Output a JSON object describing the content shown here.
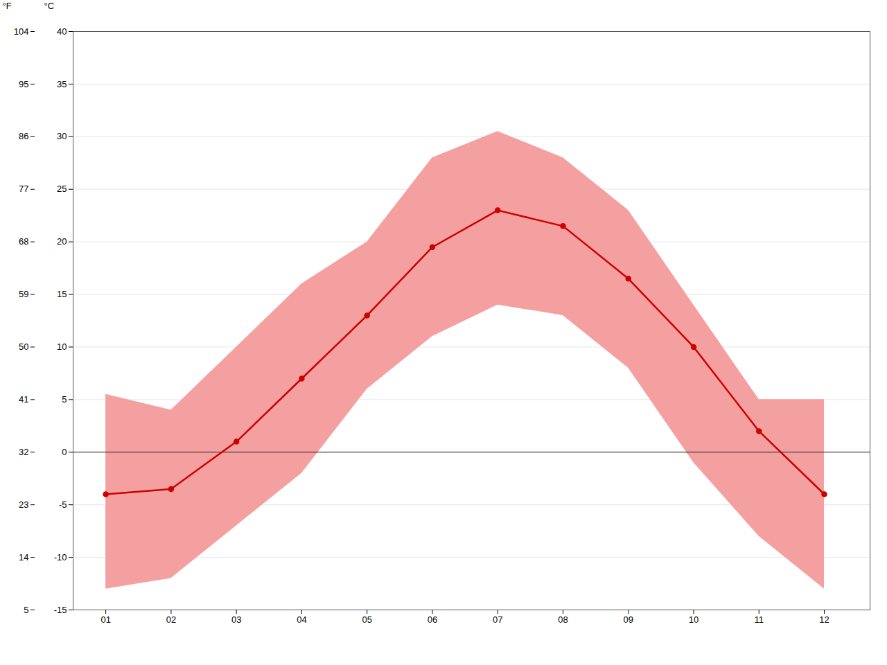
{
  "chart_data": {
    "type": "line",
    "x": [
      1,
      2,
      3,
      4,
      5,
      6,
      7,
      8,
      9,
      10,
      11,
      12
    ],
    "series": [
      {
        "type": "area",
        "color": "#f5a0a0",
        "lower": [
          -13.0,
          -12.0,
          -7.0,
          -2.0,
          6.0,
          11.0,
          14.0,
          13.0,
          8.0,
          -1.0,
          -8.0,
          -13.0
        ],
        "upper": [
          5.5,
          4.0,
          10.0,
          16.0,
          20.0,
          28.0,
          30.5,
          28.0,
          23.0,
          14.0,
          5.0,
          5.0
        ]
      },
      {
        "type": "line",
        "color": "#cc0000",
        "marker": "o",
        "values": [
          -4.0,
          -3.5,
          1.0,
          7.0,
          13.0,
          19.5,
          23.0,
          21.5,
          16.5,
          10.0,
          2.0,
          -4.0
        ]
      }
    ],
    "hlines": [
      {
        "value": 0,
        "color": "#222222"
      }
    ],
    "xlim": [
      0.5,
      12.7
    ],
    "xticks": [
      {
        "value": 1,
        "label": "01"
      },
      {
        "value": 2,
        "label": "02"
      },
      {
        "value": 3,
        "label": "03"
      },
      {
        "value": 4,
        "label": "04"
      },
      {
        "value": 5,
        "label": "05"
      },
      {
        "value": 6,
        "label": "06"
      },
      {
        "value": 7,
        "label": "07"
      },
      {
        "value": 8,
        "label": "08"
      },
      {
        "value": 9,
        "label": "09"
      },
      {
        "value": 10,
        "label": "10"
      },
      {
        "value": 11,
        "label": "11"
      },
      {
        "value": 12,
        "label": "12"
      }
    ],
    "ylim": [
      -15,
      40
    ],
    "yticks": [
      -15,
      -10,
      -5,
      0,
      5,
      10,
      15,
      20,
      25,
      30,
      35,
      40
    ],
    "y_label": "°C",
    "y2lim": [
      5,
      104
    ],
    "y2ticks": [
      5,
      14,
      23,
      32,
      41,
      50,
      59,
      68,
      77,
      86,
      95,
      104
    ],
    "y2_label": "°F",
    "grid": true
  }
}
